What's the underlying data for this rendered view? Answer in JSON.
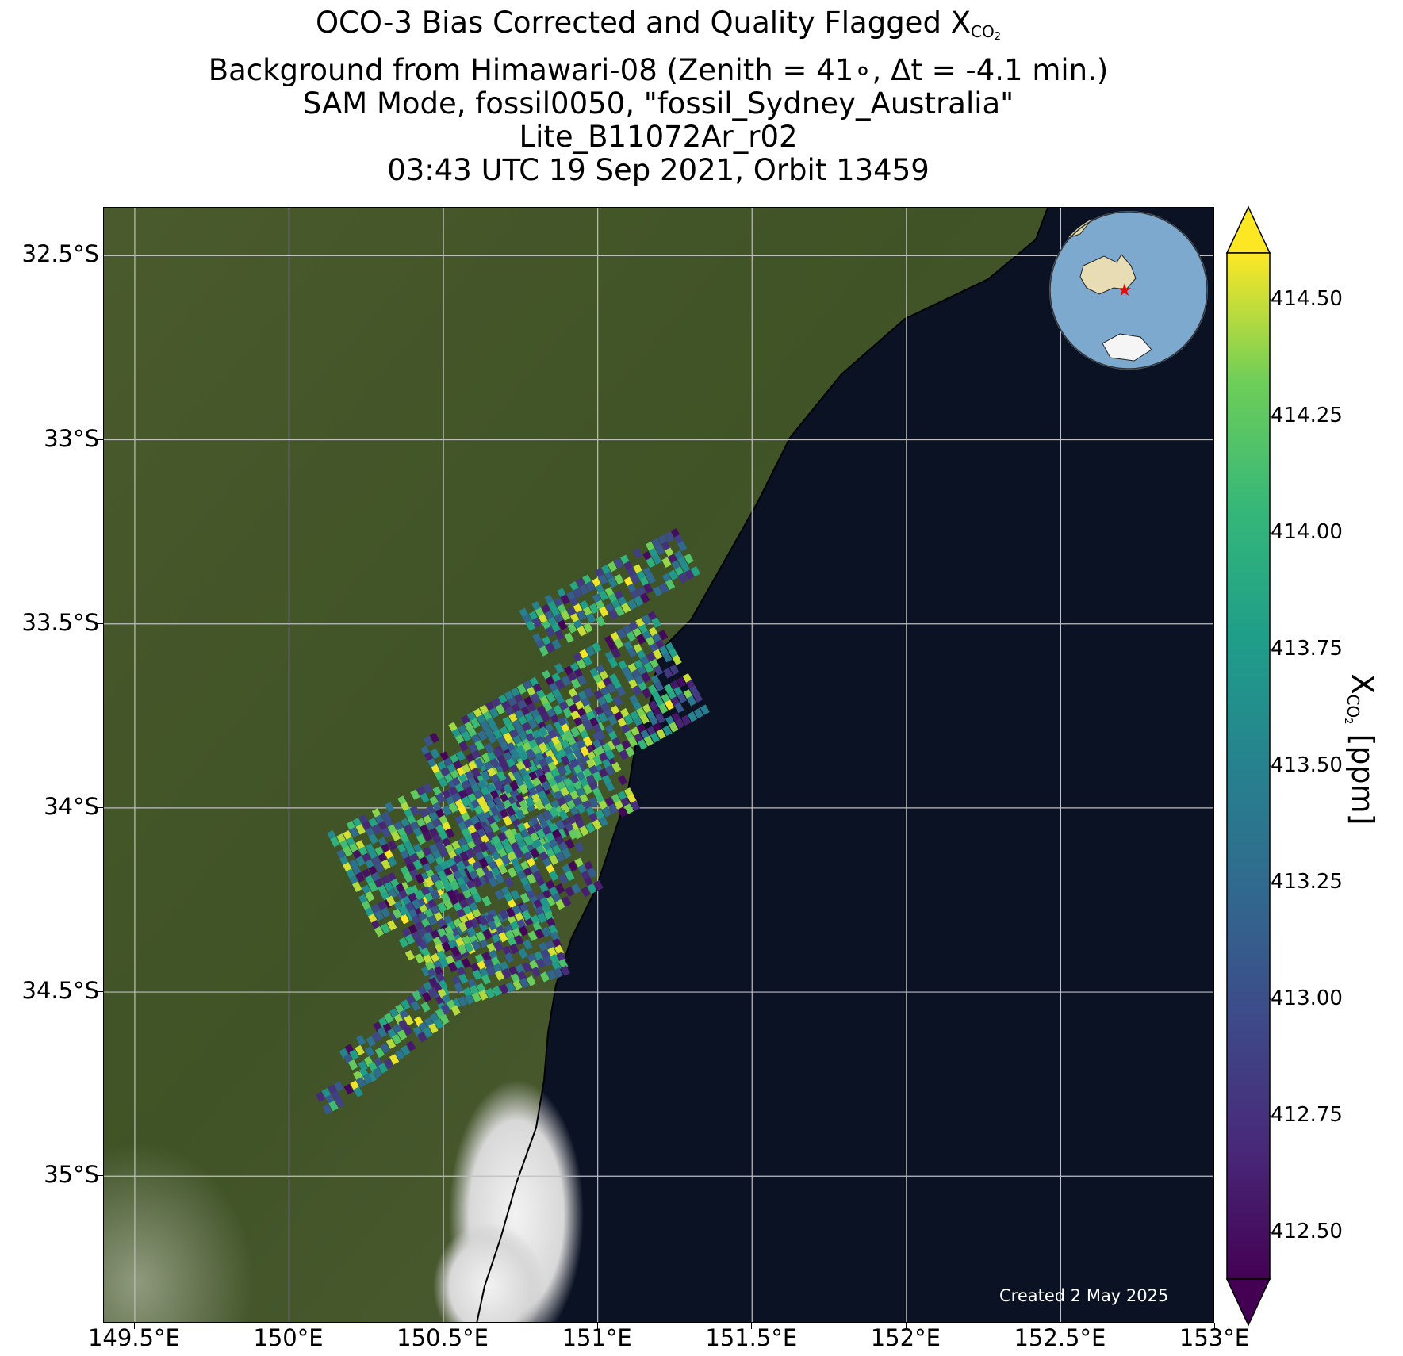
{
  "title": {
    "line1_main": "OCO-3 Bias Corrected and Quality Flagged X",
    "line1_sub": "CO",
    "line1_subsub": "2",
    "line2": "Background from Himawari-08 (Zenith = 41∘, Δt = -4.1 min.)",
    "line3": "SAM Mode, fossil0050, \"fossil_Sydney_Australia\"",
    "line4": "Lite_B11072Ar_r02",
    "line5": "03:43 UTC 19 Sep 2021, Orbit 13459"
  },
  "map": {
    "lon_range": [
      149.4,
      153.0
    ],
    "lat_range": [
      -35.4,
      -32.37
    ],
    "lat_ticks": [
      "32.5°S",
      "33°S",
      "33.5°S",
      "34°S",
      "34.5°S",
      "35°S"
    ],
    "lat_tick_values": [
      -32.5,
      -33.0,
      -33.5,
      -34.0,
      -34.5,
      -35.0
    ],
    "lon_ticks": [
      "149.5°E",
      "150°E",
      "150.5°E",
      "151°E",
      "151.5°E",
      "152°E",
      "152.5°E",
      "153°E"
    ],
    "lon_tick_values": [
      149.5,
      150.0,
      150.5,
      151.0,
      151.5,
      152.0,
      152.5,
      153.0
    ],
    "gridlines": true,
    "land_color": "#4d5a30",
    "ocean_color": "#0b1224",
    "cloud_color": "#e4e4e4",
    "inset_marker": "red-star",
    "created_text": "Created 2 May 2025"
  },
  "colorbar": {
    "colormap": "viridis",
    "ticks": [
      "414.50",
      "414.25",
      "414.00",
      "413.75",
      "413.50",
      "413.25",
      "413.00",
      "412.75",
      "412.50"
    ],
    "tick_values": [
      414.5,
      414.25,
      414.0,
      413.75,
      413.5,
      413.25,
      413.0,
      412.75,
      412.5
    ],
    "vmin": 412.4,
    "vmax": 414.6,
    "extend": "both",
    "label_main": "X",
    "label_sub": "CO",
    "label_subsub": "2",
    "label_unit": " [ppm]"
  },
  "soundings": {
    "value_range": [
      412.4,
      414.6
    ],
    "swaths": [
      {
        "lon_start": 150.78,
        "lat_start": -33.52,
        "lon_end": 151.28,
        "lat_end": -33.3,
        "across_km": 0.15
      },
      {
        "lon_start": 150.5,
        "lat_start": -33.95,
        "lon_end": 151.25,
        "lat_end": -33.6,
        "across_km": 0.35
      },
      {
        "lon_start": 150.2,
        "lat_start": -34.2,
        "lon_end": 151.05,
        "lat_end": -33.85,
        "across_km": 0.35
      },
      {
        "lon_start": 150.35,
        "lat_start": -34.35,
        "lon_end": 150.95,
        "lat_end": -34.1,
        "across_km": 0.3
      },
      {
        "lon_start": 150.45,
        "lat_start": -34.45,
        "lon_end": 150.85,
        "lat_end": -34.35,
        "across_km": 0.25
      },
      {
        "lon_start": 150.2,
        "lat_start": -34.7,
        "lon_end": 150.5,
        "lat_end": -34.5,
        "across_km": 0.12
      },
      {
        "lon_start": 150.1,
        "lat_start": -34.8,
        "lon_end": 150.25,
        "lat_end": -34.73,
        "across_km": 0.06
      }
    ]
  }
}
